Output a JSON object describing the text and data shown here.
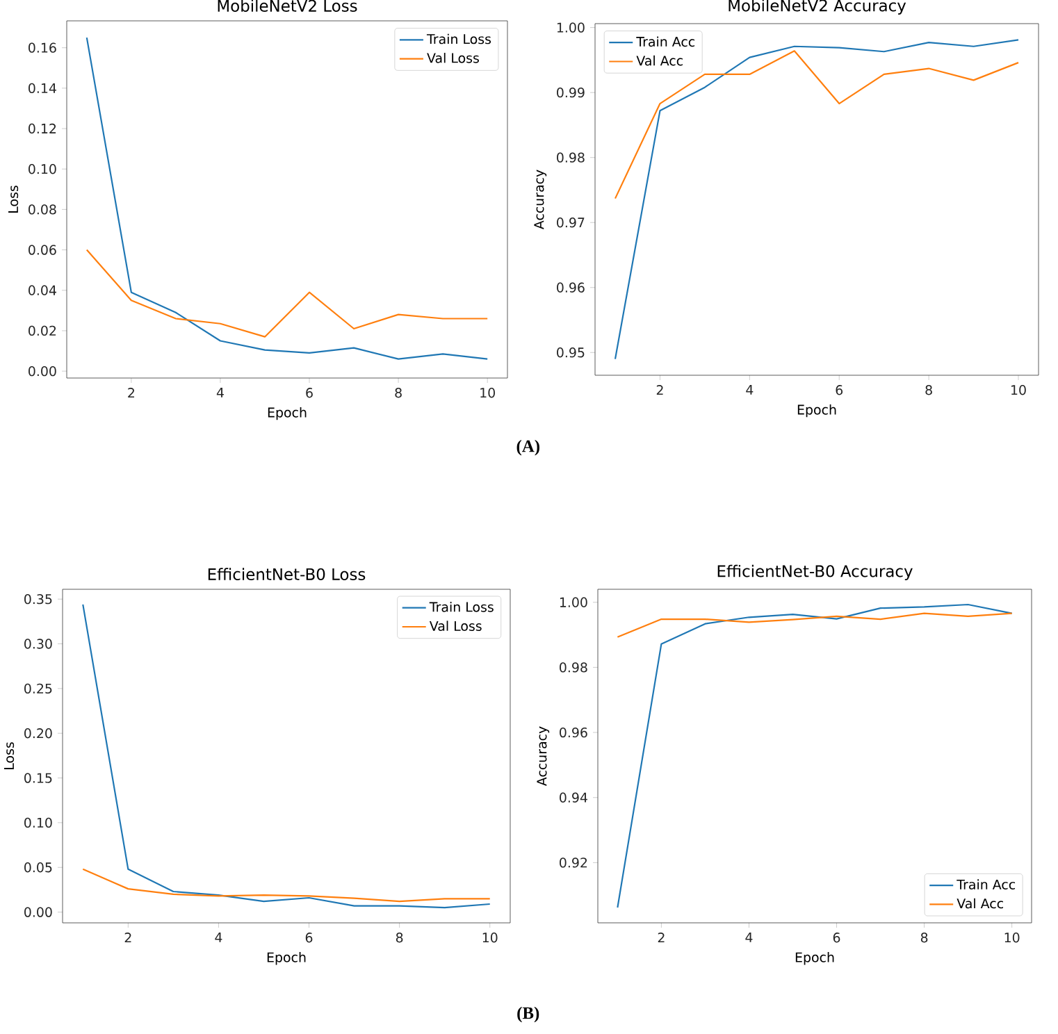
{
  "chart_data": [
    {
      "type": "line",
      "title": "MobileNetV2 Loss",
      "xlabel": "Epoch",
      "ylabel": "Loss",
      "x": [
        1,
        2,
        3,
        4,
        5,
        6,
        7,
        8,
        9,
        10
      ],
      "series": [
        {
          "name": "Train Loss",
          "color": "#1f77b4",
          "values": [
            0.165,
            0.039,
            0.029,
            0.015,
            0.0105,
            0.009,
            0.0115,
            0.006,
            0.0085,
            0.006
          ]
        },
        {
          "name": "Val Loss",
          "color": "#ff7f0e",
          "values": [
            0.06,
            0.035,
            0.026,
            0.0235,
            0.017,
            0.039,
            0.021,
            0.028,
            0.026,
            0.026
          ]
        }
      ],
      "xlim": [
        0.55,
        10.45
      ],
      "xticks": [
        2,
        4,
        6,
        8,
        10
      ],
      "ylim": [
        -0.0034,
        0.1733
      ],
      "yticks": [
        {
          "value": 0,
          "label": "0.00"
        },
        {
          "value": 0.02,
          "label": "0.02"
        },
        {
          "value": 0.04,
          "label": "0.04"
        },
        {
          "value": 0.06,
          "label": "0.06"
        },
        {
          "value": 0.08,
          "label": "0.08"
        },
        {
          "value": 0.1,
          "label": "0.10"
        },
        {
          "value": 0.12,
          "label": "0.12"
        },
        {
          "value": 0.14,
          "label": "0.14"
        },
        {
          "value": 0.16,
          "label": "0.16"
        }
      ],
      "legend": "top right",
      "annotations": [
        "(A)"
      ]
    },
    {
      "type": "line",
      "title": "MobileNetV2 Accuracy",
      "xlabel": "Epoch",
      "ylabel": "Accuracy",
      "x": [
        1,
        2,
        3,
        4,
        5,
        6,
        7,
        8,
        9,
        10
      ],
      "series": [
        {
          "name": "Train Acc",
          "color": "#1f77b4",
          "values": [
            0.949,
            0.9872,
            0.9908,
            0.9954,
            0.9971,
            0.9969,
            0.9963,
            0.9977,
            0.9971,
            0.9981
          ]
        },
        {
          "name": "Val Acc",
          "color": "#ff7f0e",
          "values": [
            0.9737,
            0.9883,
            0.9928,
            0.9928,
            0.9964,
            0.9883,
            0.9928,
            0.9937,
            0.9919,
            0.9946
          ]
        }
      ],
      "xlim": [
        0.55,
        10.45
      ],
      "xticks": [
        2,
        4,
        6,
        8,
        10
      ],
      "ylim": [
        0.9465,
        1.0006
      ],
      "yticks": [
        {
          "value": 0.95,
          "label": "0.95"
        },
        {
          "value": 0.96,
          "label": "0.96"
        },
        {
          "value": 0.97,
          "label": "0.97"
        },
        {
          "value": 0.98,
          "label": "0.98"
        },
        {
          "value": 0.99,
          "label": "0.99"
        },
        {
          "value": 1.0,
          "label": "1.00"
        }
      ],
      "legend": "top left"
    },
    {
      "type": "line",
      "title": "EfficientNet-B0 Loss",
      "xlabel": "Epoch",
      "ylabel": "Loss",
      "x": [
        1,
        2,
        3,
        4,
        5,
        6,
        7,
        8,
        9,
        10
      ],
      "series": [
        {
          "name": "Train Loss",
          "color": "#1f77b4",
          "values": [
            0.344,
            0.048,
            0.023,
            0.019,
            0.012,
            0.016,
            0.007,
            0.007,
            0.005,
            0.009
          ]
        },
        {
          "name": "Val Loss",
          "color": "#ff7f0e",
          "values": [
            0.048,
            0.026,
            0.02,
            0.018,
            0.019,
            0.018,
            0.0155,
            0.012,
            0.015,
            0.015
          ]
        }
      ],
      "xlim": [
        0.55,
        10.45
      ],
      "xticks": [
        2,
        4,
        6,
        8,
        10
      ],
      "ylim": [
        -0.012,
        0.361
      ],
      "yticks": [
        {
          "value": 0,
          "label": "0.00"
        },
        {
          "value": 0.05,
          "label": "0.05"
        },
        {
          "value": 0.1,
          "label": "0.10"
        },
        {
          "value": 0.15,
          "label": "0.15"
        },
        {
          "value": 0.2,
          "label": "0.20"
        },
        {
          "value": 0.25,
          "label": "0.25"
        },
        {
          "value": 0.3,
          "label": "0.30"
        },
        {
          "value": 0.35,
          "label": "0.35"
        }
      ],
      "legend": "top right",
      "annotations": [
        "(B)"
      ]
    },
    {
      "type": "line",
      "title": "EfficientNet-B0 Accuracy",
      "xlabel": "Epoch",
      "ylabel": "Accuracy",
      "x": [
        1,
        2,
        3,
        4,
        5,
        6,
        7,
        8,
        9,
        10
      ],
      "series": [
        {
          "name": "Train Acc",
          "color": "#1f77b4",
          "values": [
            0.9062,
            0.9872,
            0.9934,
            0.9954,
            0.9963,
            0.9949,
            0.9982,
            0.9986,
            0.9993,
            0.9966
          ]
        },
        {
          "name": "Val Acc",
          "color": "#ff7f0e",
          "values": [
            0.9893,
            0.9948,
            0.9948,
            0.9939,
            0.9947,
            0.9957,
            0.9948,
            0.9966,
            0.9957,
            0.9966
          ]
        }
      ],
      "xlim": [
        0.55,
        10.45
      ],
      "xticks": [
        2,
        4,
        6,
        8,
        10
      ],
      "ylim": [
        0.9015,
        1.004
      ],
      "yticks": [
        {
          "value": 0.92,
          "label": "0.92"
        },
        {
          "value": 0.94,
          "label": "0.94"
        },
        {
          "value": 0.96,
          "label": "0.96"
        },
        {
          "value": 0.98,
          "label": "0.98"
        },
        {
          "value": 1.0,
          "label": "1.00"
        }
      ],
      "legend": "bottom right"
    }
  ]
}
